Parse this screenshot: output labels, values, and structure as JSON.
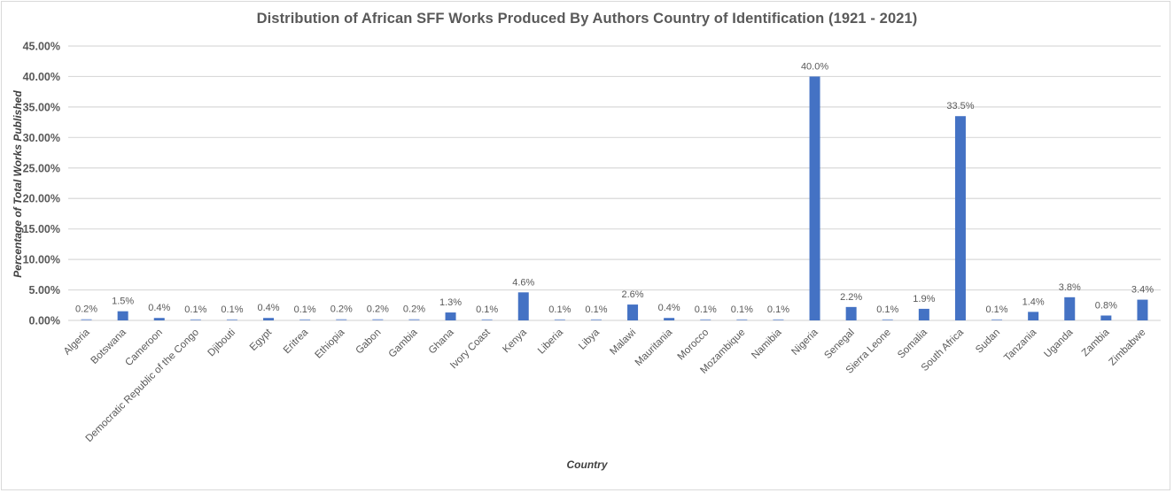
{
  "chart_data": {
    "type": "bar",
    "title": "Distribution of African SFF Works Produced By Authors Country of Identification (1921 - 2021)",
    "xlabel": "Country",
    "ylabel": "Percentage of Total Works Published",
    "ylim": [
      0,
      45
    ],
    "yticks": [
      "0.00%",
      "5.00%",
      "10.00%",
      "15.00%",
      "20.00%",
      "25.00%",
      "30.00%",
      "35.00%",
      "40.00%",
      "45.00%"
    ],
    "grid": true,
    "legend": "none",
    "bar_color": "#4472c4",
    "categories": [
      "Algeria",
      "Botswana",
      "Cameroon",
      "Democratic Republic of the Congo",
      "Djibouti",
      "Egypt",
      "Eritrea",
      "Ethiopia",
      "Gabon",
      "Gambia",
      "Ghana",
      "Ivory Coast",
      "Kenya",
      "Liberia",
      "Libya",
      "Malawi",
      "Mauritania",
      "Morocco",
      "Mozambique",
      "Namibia",
      "Nigeria",
      "Senegal",
      "Sierra Leone",
      "Somalia",
      "South Africa",
      "Sudan",
      "Tanzania",
      "Uganda",
      "Zambia",
      "Zimbabwe"
    ],
    "values": [
      0.2,
      1.5,
      0.4,
      0.1,
      0.1,
      0.4,
      0.1,
      0.2,
      0.2,
      0.2,
      1.3,
      0.1,
      4.6,
      0.1,
      0.1,
      2.6,
      0.4,
      0.1,
      0.1,
      0.1,
      40.0,
      2.2,
      0.1,
      1.9,
      33.5,
      0.1,
      1.4,
      3.8,
      0.8,
      3.4
    ],
    "data_labels": [
      "0.2%",
      "1.5%",
      "0.4%",
      "0.1%",
      "0.1%",
      "0.4%",
      "0.1%",
      "0.2%",
      "0.2%",
      "0.2%",
      "1.3%",
      "0.1%",
      "4.6%",
      "0.1%",
      "0.1%",
      "2.6%",
      "0.4%",
      "0.1%",
      "0.1%",
      "0.1%",
      "40.0%",
      "2.2%",
      "0.1%",
      "1.9%",
      "33.5%",
      "0.1%",
      "1.4%",
      "3.8%",
      "0.8%",
      "3.4%"
    ]
  }
}
